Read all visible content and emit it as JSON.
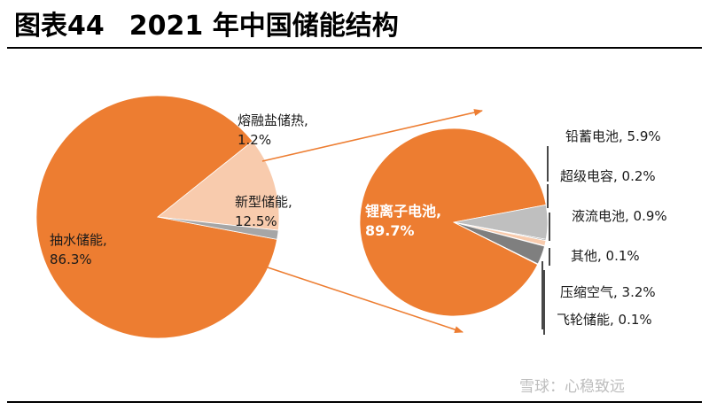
{
  "header": {
    "figure_no": "图表44",
    "title": "2021 年中国储能结构"
  },
  "watermark": "雪球：心稳致远",
  "chart_data": [
    {
      "type": "pie",
      "series": [
        {
          "name": "抽水储能",
          "value": 86.3,
          "label": "86.3%",
          "color": "#ED7D31"
        },
        {
          "name": "新型储能",
          "value": 12.5,
          "label": "12.5%",
          "color": "#F8CBAD"
        },
        {
          "name": "熔融盐储热",
          "value": 1.2,
          "label": "1.2%",
          "color": "#A6A6A6"
        }
      ]
    },
    {
      "type": "pie",
      "series": [
        {
          "name": "锂离子电池",
          "value": 89.7,
          "label": "89.7%",
          "color": "#ED7D31"
        },
        {
          "name": "铅蓄电池",
          "value": 5.9,
          "label": "5.9%",
          "color": "#BFBFBF"
        },
        {
          "name": "超级电容",
          "value": 0.2,
          "label": "0.2%",
          "color": "#7F7F7F"
        },
        {
          "name": "液流电池",
          "value": 0.9,
          "label": "0.9%",
          "color": "#F8CBAD"
        },
        {
          "name": "其他",
          "value": 0.1,
          "label": "0.1%",
          "color": "#595959"
        },
        {
          "name": "压缩空气",
          "value": 3.2,
          "label": "3.2%",
          "color": "#7F7F7F"
        },
        {
          "name": "飞轮储能",
          "value": 0.1,
          "label": "0.1%",
          "color": "#D9D9D9"
        }
      ]
    }
  ]
}
